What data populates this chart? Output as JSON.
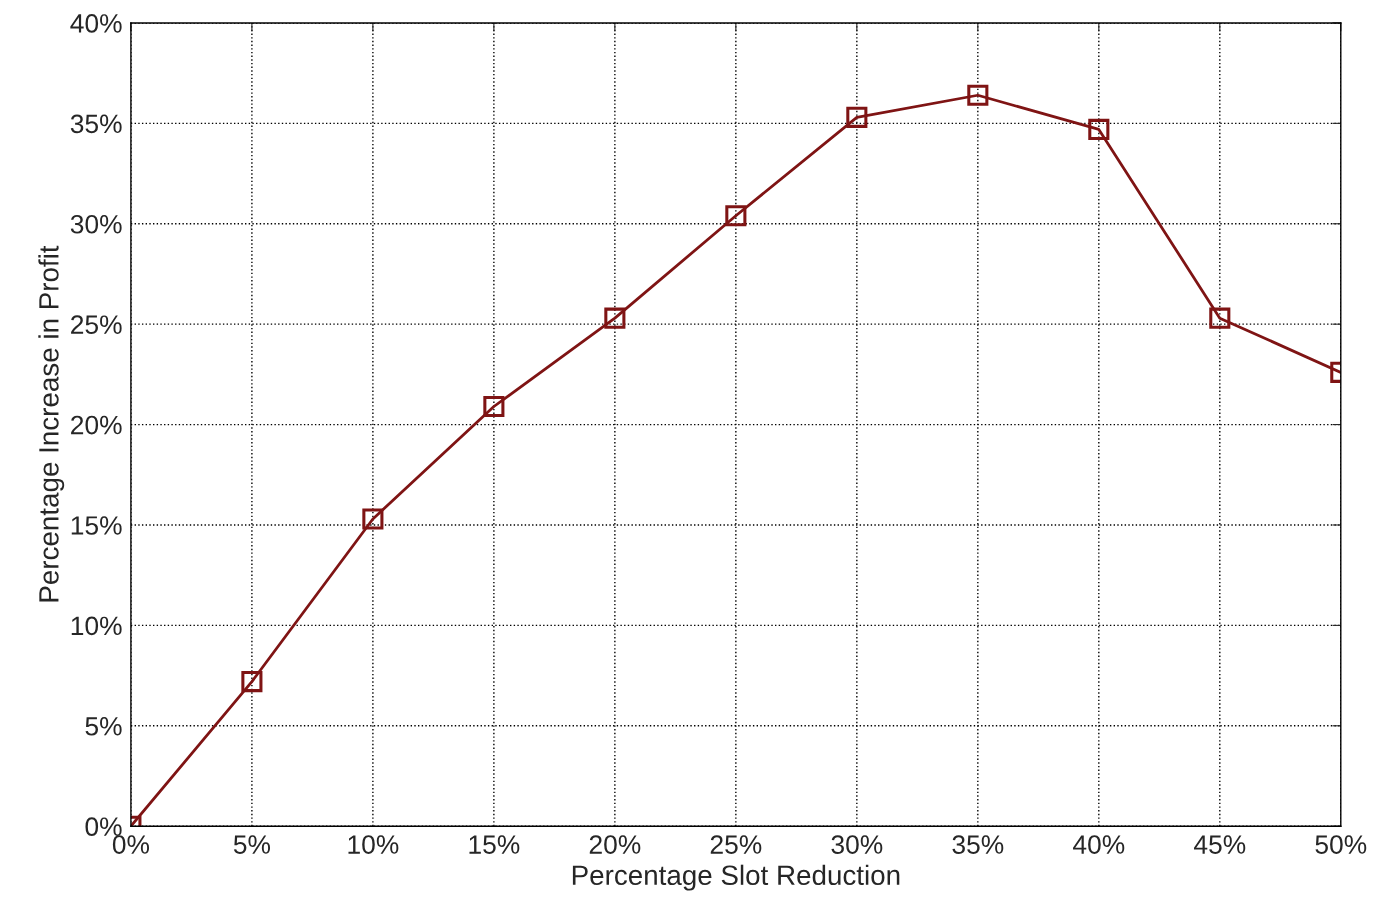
{
  "chart_data": {
    "type": "line",
    "xlabel": "Percentage Slot Reduction",
    "ylabel": "Percentage Increase in Profit",
    "x": [
      0,
      5,
      10,
      15,
      20,
      25,
      30,
      35,
      40,
      45,
      50
    ],
    "series": [
      {
        "color": "#7f1414",
        "values": [
          0,
          7.2,
          15.3,
          20.9,
          25.3,
          30.4,
          35.3,
          36.4,
          34.7,
          25.3,
          22.6
        ]
      }
    ],
    "xlim": [
      0,
      50
    ],
    "xticks": [
      {
        "value": 0,
        "label": "0%"
      },
      {
        "value": 5,
        "label": "5%"
      },
      {
        "value": 10,
        "label": "10%"
      },
      {
        "value": 15,
        "label": "15%"
      },
      {
        "value": 20,
        "label": "20%"
      },
      {
        "value": 25,
        "label": "25%"
      },
      {
        "value": 30,
        "label": "30%"
      },
      {
        "value": 35,
        "label": "35%"
      },
      {
        "value": 40,
        "label": "40%"
      },
      {
        "value": 45,
        "label": "45%"
      },
      {
        "value": 50,
        "label": "50%"
      }
    ],
    "ylim": [
      0,
      40
    ],
    "yticks": [
      {
        "value": 0,
        "label": "0%"
      },
      {
        "value": 5,
        "label": "5%"
      },
      {
        "value": 10,
        "label": "10%"
      },
      {
        "value": 15,
        "label": "15%"
      },
      {
        "value": 20,
        "label": "20%"
      },
      {
        "value": 25,
        "label": "25%"
      },
      {
        "value": 30,
        "label": "30%"
      },
      {
        "value": 35,
        "label": "35%"
      },
      {
        "value": 40,
        "label": "40%"
      }
    ],
    "grid": true,
    "marker": "square",
    "line_style": "solid"
  }
}
